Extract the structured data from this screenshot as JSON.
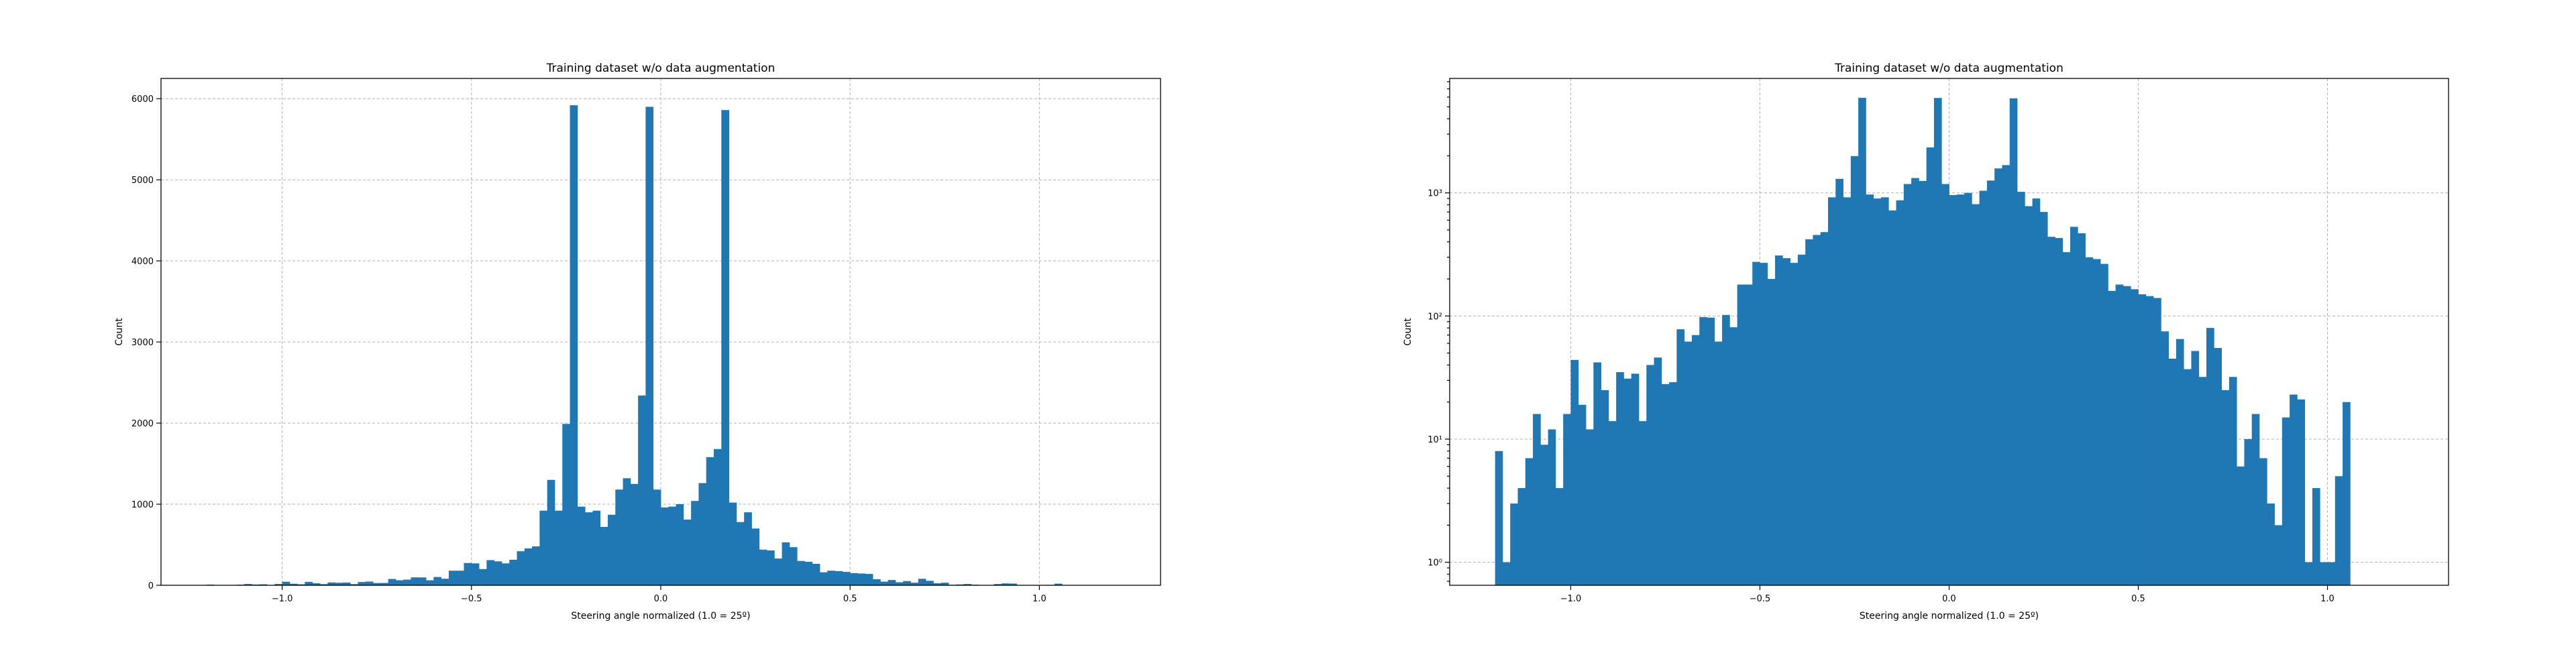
{
  "colors": {
    "bar": "#1f77b4",
    "background": "#ffffff",
    "grid": "#b0b0b0"
  },
  "chart_data": [
    {
      "type": "bar",
      "title": "Training dataset w/o data augmentation",
      "xlabel": "Steering angle normalized (1.0 = 25º)",
      "ylabel": "Count",
      "yscale": "linear",
      "grid": true,
      "xlim": [
        -1.32,
        1.32
      ],
      "ylim": [
        0,
        6250
      ],
      "xticks": [
        -1.0,
        -0.5,
        0.0,
        0.5,
        1.0
      ],
      "xtick_labels": [
        "−1.0",
        "−0.5",
        "0.0",
        "0.5",
        "1.0"
      ],
      "yticks": [
        0,
        1000,
        2000,
        3000,
        4000,
        5000,
        6000
      ],
      "ytick_labels": [
        "0",
        "1000",
        "2000",
        "3000",
        "4000",
        "5000",
        "6000"
      ],
      "bin_start": -1.2,
      "bin_width": 0.02,
      "values": [
        8,
        1,
        3,
        4,
        7,
        16,
        9,
        12,
        4,
        16,
        44,
        19,
        12,
        42,
        25,
        14,
        35,
        31,
        34,
        14,
        40,
        46,
        28,
        29,
        78,
        62,
        70,
        98,
        97,
        62,
        102,
        81,
        180,
        180,
        275,
        270,
        200,
        310,
        295,
        270,
        315,
        420,
        455,
        480,
        920,
        1300,
        920,
        1990,
        5920,
        970,
        900,
        920,
        720,
        870,
        1180,
        1320,
        1250,
        2340,
        5900,
        1180,
        960,
        970,
        1000,
        810,
        1040,
        1260,
        1580,
        1680,
        5860,
        1020,
        780,
        900,
        700,
        440,
        430,
        330,
        530,
        470,
        300,
        290,
        265,
        160,
        180,
        175,
        165,
        150,
        145,
        140,
        75,
        45,
        65,
        37,
        52,
        32,
        80,
        55,
        25,
        32,
        6,
        10,
        16,
        7,
        3,
        2,
        15,
        23,
        21,
        1,
        4,
        1,
        1,
        5,
        20
      ],
      "value_note": ""
    },
    {
      "type": "bar",
      "title": "Training dataset w/o data augmentation",
      "xlabel": "Steering angle normalized (1.0 = 25º)",
      "ylabel": "Count",
      "yscale": "log",
      "grid": true,
      "xlim": [
        -1.32,
        1.32
      ],
      "ylim": [
        0.65,
        8500
      ],
      "xticks": [
        -1.0,
        -0.5,
        0.0,
        0.5,
        1.0
      ],
      "xtick_labels": [
        "−1.0",
        "−0.5",
        "0.0",
        "0.5",
        "1.0"
      ],
      "yticks": [
        1,
        10,
        100,
        1000
      ],
      "ytick_labels": [
        "10⁰",
        "10¹",
        "10²",
        "10³"
      ],
      "bin_start": -1.2,
      "bin_width": 0.02,
      "values": [
        8,
        1,
        3,
        4,
        7,
        16,
        9,
        12,
        4,
        16,
        44,
        19,
        12,
        42,
        25,
        14,
        35,
        31,
        34,
        14,
        40,
        46,
        28,
        29,
        78,
        62,
        70,
        98,
        97,
        62,
        102,
        81,
        180,
        180,
        275,
        270,
        200,
        310,
        295,
        270,
        315,
        420,
        455,
        480,
        920,
        1300,
        920,
        1990,
        5920,
        970,
        900,
        920,
        720,
        870,
        1180,
        1320,
        1250,
        2340,
        5900,
        1180,
        960,
        970,
        1000,
        810,
        1040,
        1260,
        1580,
        1680,
        5860,
        1020,
        780,
        900,
        700,
        440,
        430,
        330,
        530,
        470,
        300,
        290,
        265,
        160,
        180,
        175,
        165,
        150,
        145,
        140,
        75,
        45,
        65,
        37,
        52,
        32,
        80,
        55,
        25,
        32,
        6,
        10,
        16,
        7,
        3,
        2,
        15,
        23,
        21,
        1,
        4,
        1,
        1,
        5,
        20
      ]
    }
  ]
}
